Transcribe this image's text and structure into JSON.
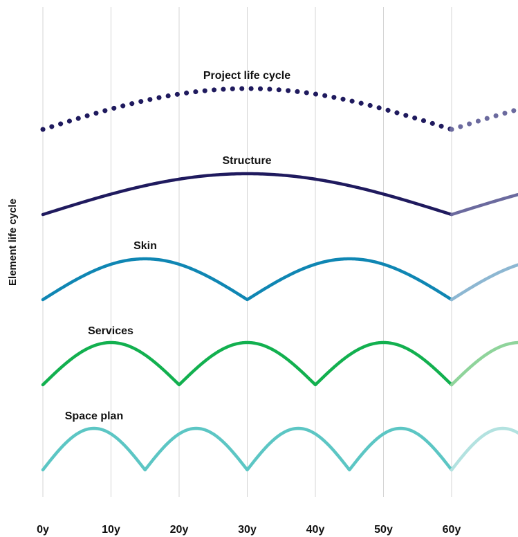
{
  "y_axis_label": "Element life cycle",
  "x_ticks": [
    "0y",
    "10y",
    "20y",
    "30y",
    "40y",
    "50y",
    "60y"
  ],
  "chart_data": {
    "type": "line",
    "title": "",
    "xlabel": "",
    "ylabel": "Element life cycle",
    "x_unit": "years",
    "xlim": [
      0,
      70
    ],
    "grid": true,
    "series": [
      {
        "name": "Project life cycle",
        "cycle_years": 60,
        "style": "dotted",
        "color": "#1f1a5e",
        "faded_color": "#6b6a9e"
      },
      {
        "name": "Structure",
        "cycle_years": 60,
        "style": "solid",
        "color": "#1f1a5e",
        "faded_color": "#6b6a9e"
      },
      {
        "name": "Skin",
        "cycle_years": 30,
        "style": "solid",
        "color": "#0f86b3",
        "faded_color": "#8db7d2"
      },
      {
        "name": "Services",
        "cycle_years": 20,
        "style": "solid",
        "color": "#12b04f",
        "faded_color": "#8fd49b"
      },
      {
        "name": "Space plan",
        "cycle_years": 15,
        "style": "solid",
        "color": "#5cc6c4",
        "faded_color": "#b3e2e0"
      }
    ]
  }
}
